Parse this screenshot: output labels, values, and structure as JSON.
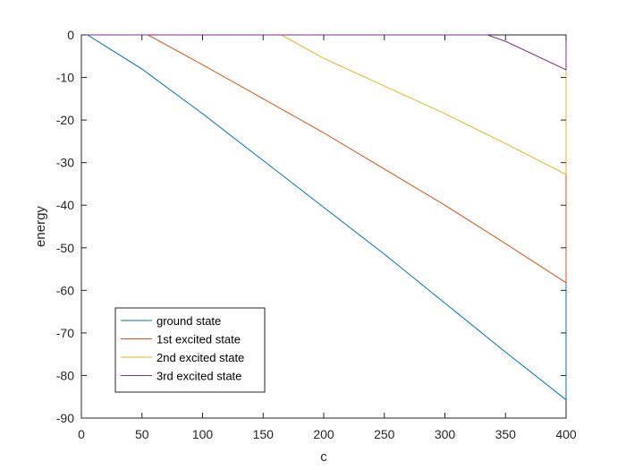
{
  "chart_data": {
    "type": "line",
    "title": "",
    "xlabel": "c",
    "ylabel": "energy",
    "xlim": [
      0,
      400
    ],
    "ylim": [
      -90,
      0
    ],
    "xticks": [
      0,
      50,
      100,
      150,
      200,
      250,
      300,
      350,
      400
    ],
    "yticks": [
      0,
      -10,
      -20,
      -30,
      -40,
      -50,
      -60,
      -70,
      -80,
      -90
    ],
    "grid": false,
    "legend_position": "bottom-left",
    "series": [
      {
        "name": "ground state",
        "color": "#0072BD",
        "x": [
          0,
          5,
          50,
          100,
          150,
          200,
          250,
          300,
          350,
          400
        ],
        "y": [
          0,
          0,
          -8,
          -18.5,
          -29.5,
          -40.5,
          -51.5,
          -63,
          -74.5,
          -85.7
        ]
      },
      {
        "name": "1st excited state",
        "color": "#D95319",
        "x": [
          0,
          55,
          100,
          150,
          200,
          250,
          300,
          350,
          400
        ],
        "y": [
          0,
          0,
          -7,
          -15,
          -23,
          -31.5,
          -40,
          -49,
          -58.2
        ]
      },
      {
        "name": "2nd excited state",
        "color": "#EDB120",
        "x": [
          0,
          165,
          200,
          250,
          300,
          350,
          400
        ],
        "y": [
          0,
          0,
          -5.5,
          -12,
          -18.5,
          -25.5,
          -32.8
        ]
      },
      {
        "name": "3rd excited state",
        "color": "#7E2F8E",
        "x": [
          0,
          335,
          350,
          400
        ],
        "y": [
          0,
          0,
          -1.5,
          -8.2
        ]
      }
    ]
  }
}
